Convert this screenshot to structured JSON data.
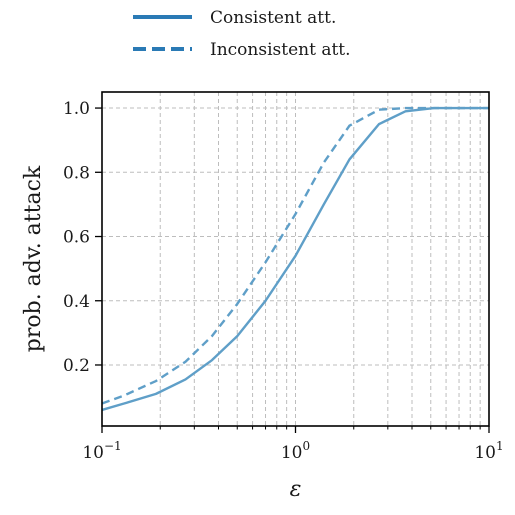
{
  "chart_data": {
    "type": "line",
    "xlabel": "ε",
    "ylabel": "prob. adv. attack",
    "xscale": "log",
    "xlim": [
      0.1,
      10
    ],
    "ylim": [
      0.01,
      1.05
    ],
    "grid": true,
    "legend_position": "top-center",
    "x_ticks": [
      {
        "value": 0.1,
        "base": "10",
        "exp": "−1"
      },
      {
        "value": 1,
        "base": "10",
        "exp": "0"
      },
      {
        "value": 10,
        "base": "10",
        "exp": "1"
      }
    ],
    "y_ticks": [
      "0.2",
      "0.4",
      "0.6",
      "0.8",
      "1.0"
    ],
    "series": [
      {
        "name": "Consistent att.",
        "style": "solid",
        "color": "#5f9fc8",
        "legend_color": "#2a7ab5",
        "x": [
          0.1,
          0.13,
          0.19,
          0.27,
          0.37,
          0.5,
          0.7,
          1.0,
          1.4,
          1.9,
          2.7,
          3.7,
          5.2,
          7.2,
          10
        ],
        "y": [
          0.06,
          0.08,
          0.11,
          0.155,
          0.215,
          0.29,
          0.4,
          0.54,
          0.7,
          0.84,
          0.95,
          0.99,
          1.0,
          1.0,
          1.0
        ]
      },
      {
        "name": "Inconsistent att.",
        "style": "dashed",
        "color": "#5f9fc8",
        "legend_color": "#2a7ab5",
        "x": [
          0.1,
          0.13,
          0.19,
          0.27,
          0.37,
          0.5,
          0.7,
          1.0,
          1.4,
          1.9,
          2.7,
          3.7,
          5.2,
          7.2,
          10
        ],
        "y": [
          0.08,
          0.105,
          0.15,
          0.21,
          0.29,
          0.39,
          0.52,
          0.67,
          0.83,
          0.945,
          0.995,
          1.0,
          1.0,
          1.0,
          1.0
        ]
      }
    ]
  }
}
